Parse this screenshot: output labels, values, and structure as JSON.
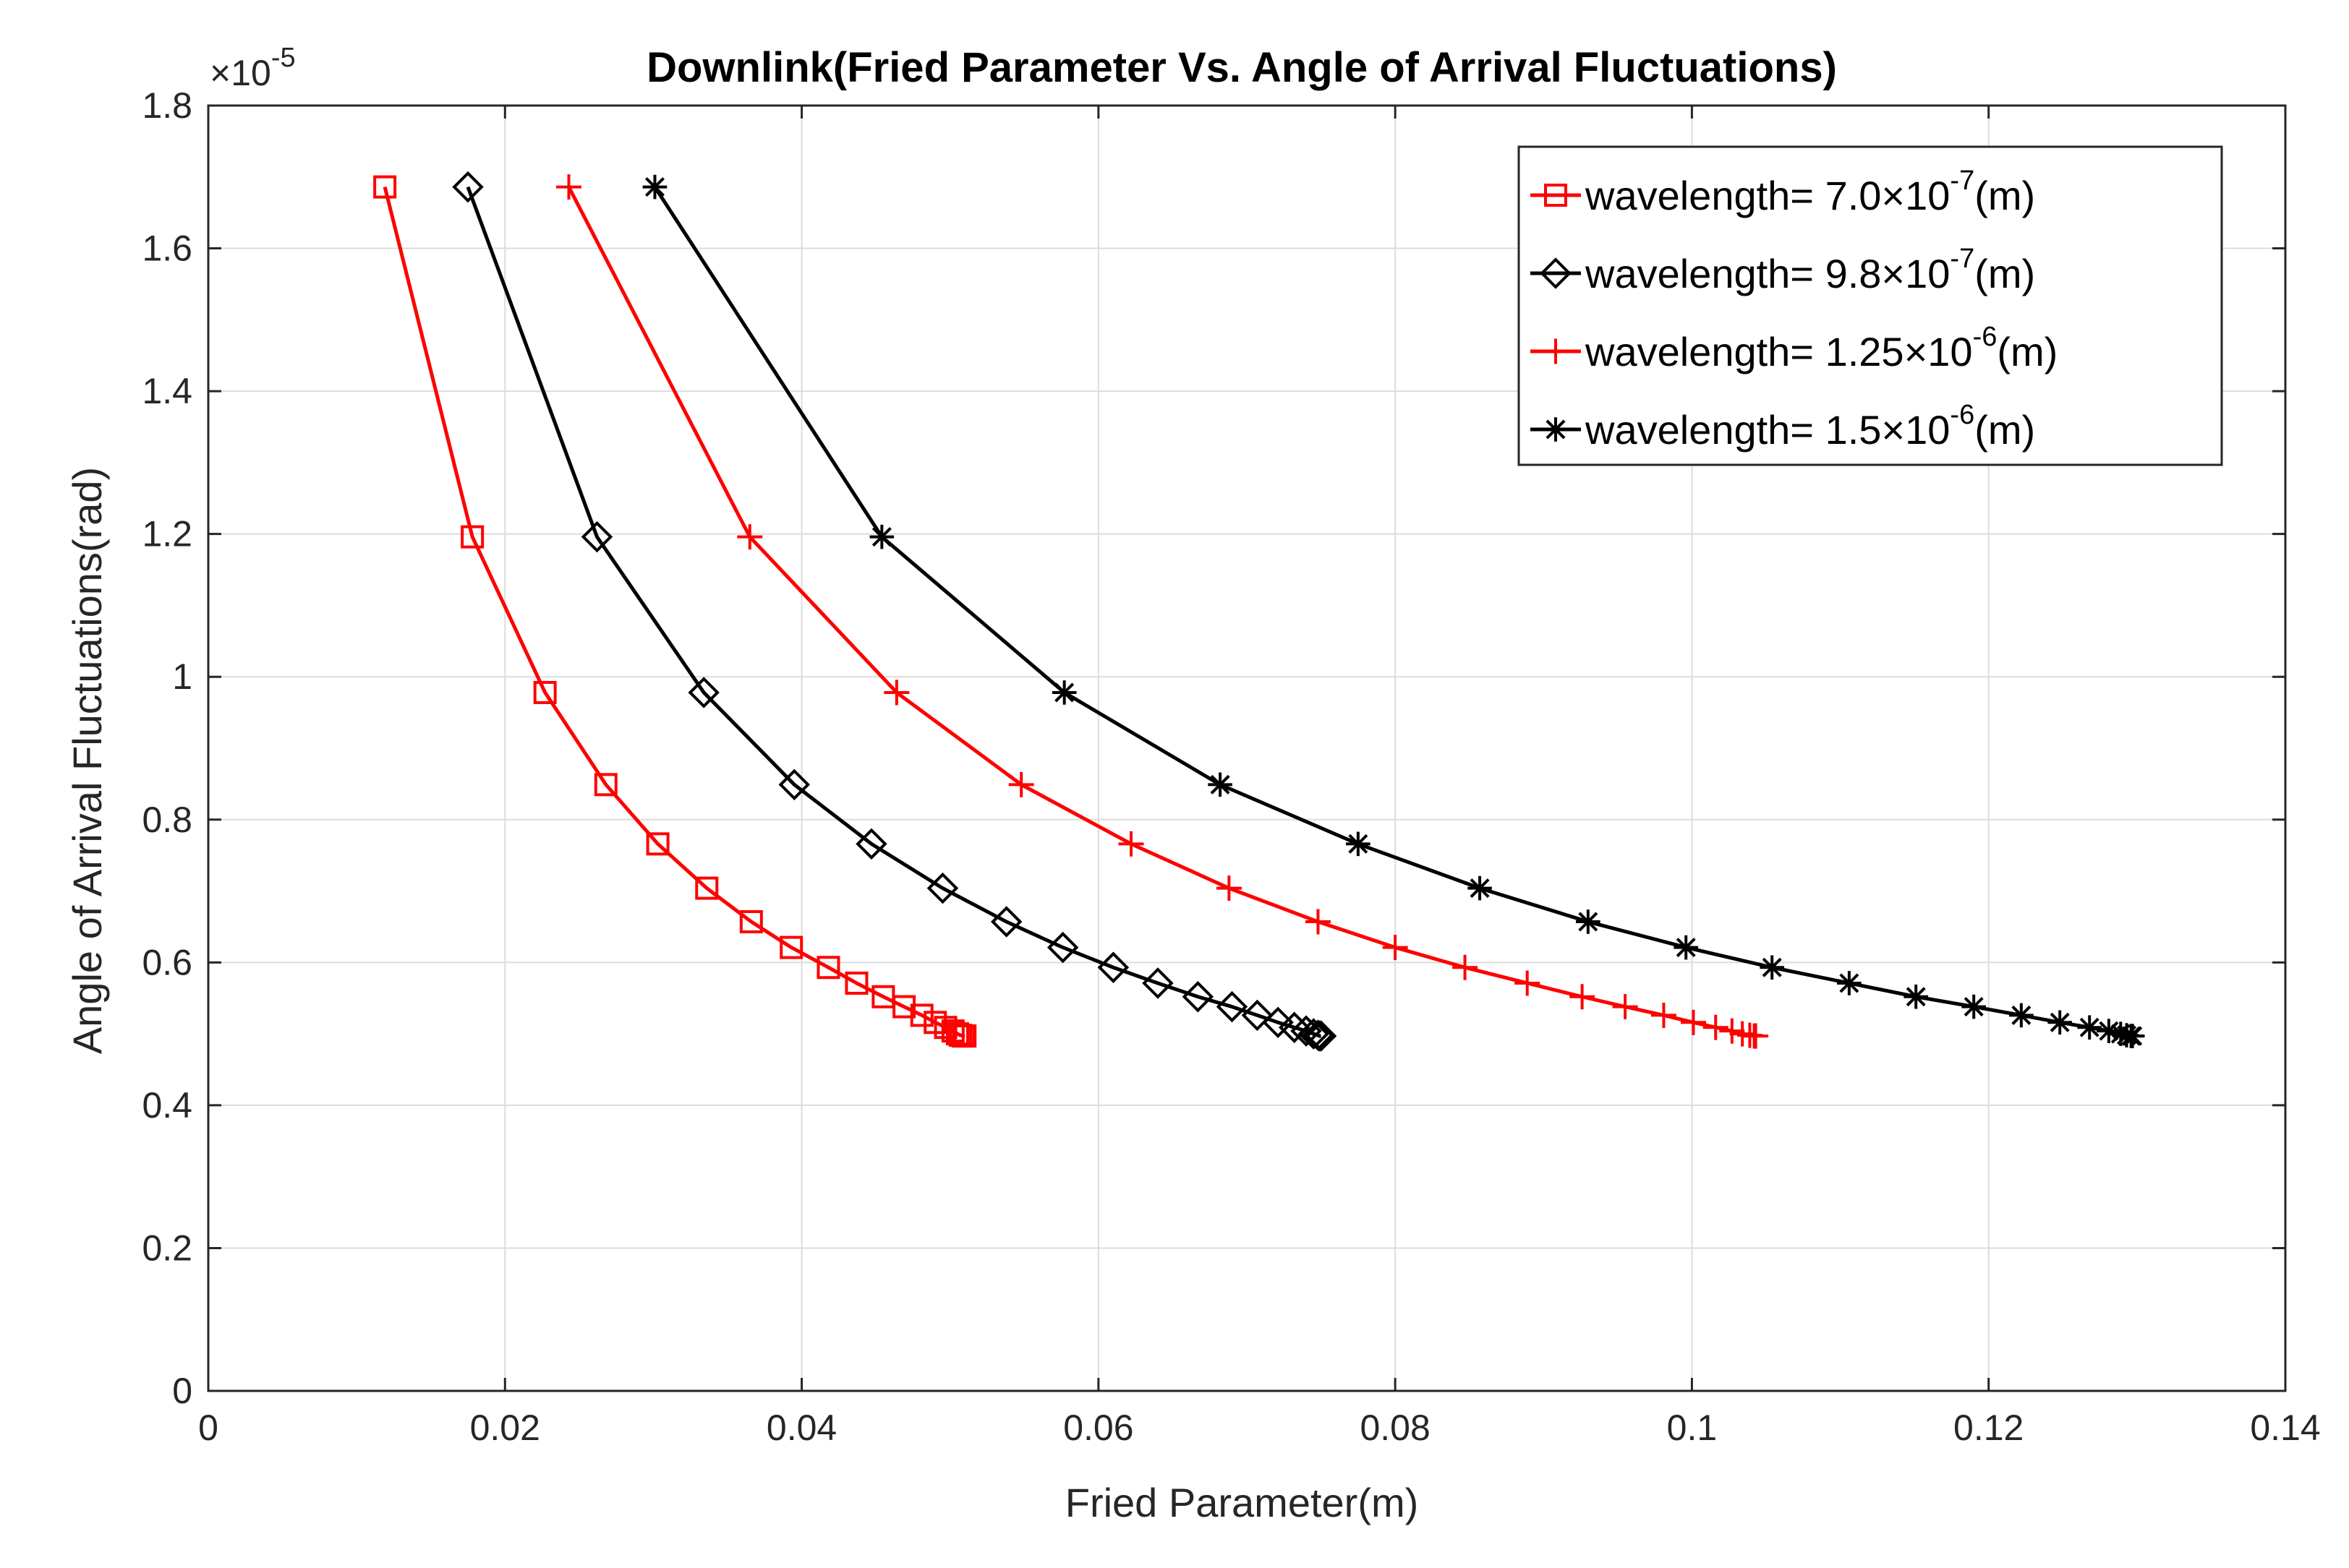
{
  "chart_data": {
    "type": "line",
    "title": "Downlink(Fried Parameter Vs. Angle of Arrival Fluctuations)",
    "xlabel": "Fried Parameter(m)",
    "ylabel": "Angle of Arrival Fluctuations(rad)",
    "xlim": [
      0,
      0.14
    ],
    "ylim": [
      0,
      1.8
    ],
    "y_exponent_label": "×10",
    "y_exponent": "-5",
    "grid": true,
    "legend_position": "top-right",
    "x_ticks": [
      0,
      0.02,
      0.04,
      0.06,
      0.08,
      0.1,
      0.12,
      0.14
    ],
    "x_tick_labels": [
      "0",
      "0.02",
      "0.04",
      "0.06",
      "0.08",
      "0.1",
      "0.12",
      "0.14"
    ],
    "y_ticks": [
      0,
      0.2,
      0.4,
      0.6,
      0.8,
      1,
      1.2,
      1.4,
      1.6,
      1.8
    ],
    "y_tick_labels": [
      "0",
      "0.2",
      "0.4",
      "0.6",
      "0.8",
      "1",
      "1.2",
      "1.4",
      "1.6",
      "1.8"
    ],
    "series": [
      {
        "name": "wavelength= 7.0×10⁻⁷(m)",
        "legend_prefix": "wavelength= 7.0×10",
        "legend_exp": "-7",
        "legend_suffix": "(m)",
        "color": "#ff0000",
        "marker": "square",
        "x": [
          0.0119,
          0.0178,
          0.0227,
          0.0268,
          0.0303,
          0.0336,
          0.0366,
          0.0393,
          0.0418,
          0.0437,
          0.0455,
          0.0469,
          0.0481,
          0.049,
          0.0497,
          0.0502,
          0.0505,
          0.0507,
          0.0509,
          0.051
        ],
        "y": [
          1.686,
          1.196,
          0.978,
          0.849,
          0.766,
          0.704,
          0.657,
          0.621,
          0.593,
          0.571,
          0.552,
          0.538,
          0.526,
          0.516,
          0.509,
          0.504,
          0.5,
          0.498,
          0.497,
          0.497
        ]
      },
      {
        "name": "wavelength= 9.8×10⁻⁷(m)",
        "legend_prefix": "wavelength= 9.8×10",
        "legend_exp": "-7",
        "legend_suffix": "(m)",
        "color": "#000000",
        "marker": "diamond",
        "x": [
          0.0175,
          0.0262,
          0.0334,
          0.0395,
          0.0447,
          0.0495,
          0.0538,
          0.0576,
          0.061,
          0.064,
          0.0667,
          0.069,
          0.0707,
          0.0721,
          0.0732,
          0.074,
          0.0745,
          0.0748,
          0.0749,
          0.075
        ],
        "y": [
          1.686,
          1.196,
          0.978,
          0.849,
          0.766,
          0.704,
          0.657,
          0.621,
          0.593,
          0.571,
          0.552,
          0.538,
          0.526,
          0.516,
          0.509,
          0.504,
          0.5,
          0.498,
          0.497,
          0.497
        ]
      },
      {
        "name": "wavelength= 1.25×10⁻⁶(m)",
        "legend_prefix": "wavelength= 1.25×10",
        "legend_exp": "-6",
        "legend_suffix": "(m)",
        "color": "#ff0000",
        "marker": "plus",
        "x": [
          0.0243,
          0.0365,
          0.0464,
          0.0548,
          0.0622,
          0.0688,
          0.0748,
          0.08,
          0.0847,
          0.0889,
          0.0926,
          0.0955,
          0.0981,
          0.1001,
          0.1016,
          0.1027,
          0.1034,
          0.1039,
          0.1042,
          0.1043
        ],
        "y": [
          1.686,
          1.196,
          0.978,
          0.849,
          0.766,
          0.704,
          0.657,
          0.621,
          0.593,
          0.571,
          0.552,
          0.538,
          0.526,
          0.516,
          0.509,
          0.504,
          0.5,
          0.498,
          0.497,
          0.497
        ]
      },
      {
        "name": "wavelength= 1.5×10⁻⁶(m)",
        "legend_prefix": "wavelength= 1.5×10",
        "legend_exp": "-6",
        "legend_suffix": "(m)",
        "color": "#000000",
        "marker": "star",
        "x": [
          0.0301,
          0.0454,
          0.0577,
          0.0682,
          0.0775,
          0.0857,
          0.093,
          0.0996,
          0.1054,
          0.1106,
          0.1151,
          0.119,
          0.1222,
          0.1248,
          0.1268,
          0.1281,
          0.1289,
          0.1293,
          0.1296,
          0.1297
        ],
        "y": [
          1.686,
          1.196,
          0.978,
          0.849,
          0.766,
          0.704,
          0.657,
          0.621,
          0.593,
          0.571,
          0.552,
          0.538,
          0.526,
          0.516,
          0.509,
          0.504,
          0.5,
          0.498,
          0.497,
          0.497
        ]
      }
    ]
  }
}
